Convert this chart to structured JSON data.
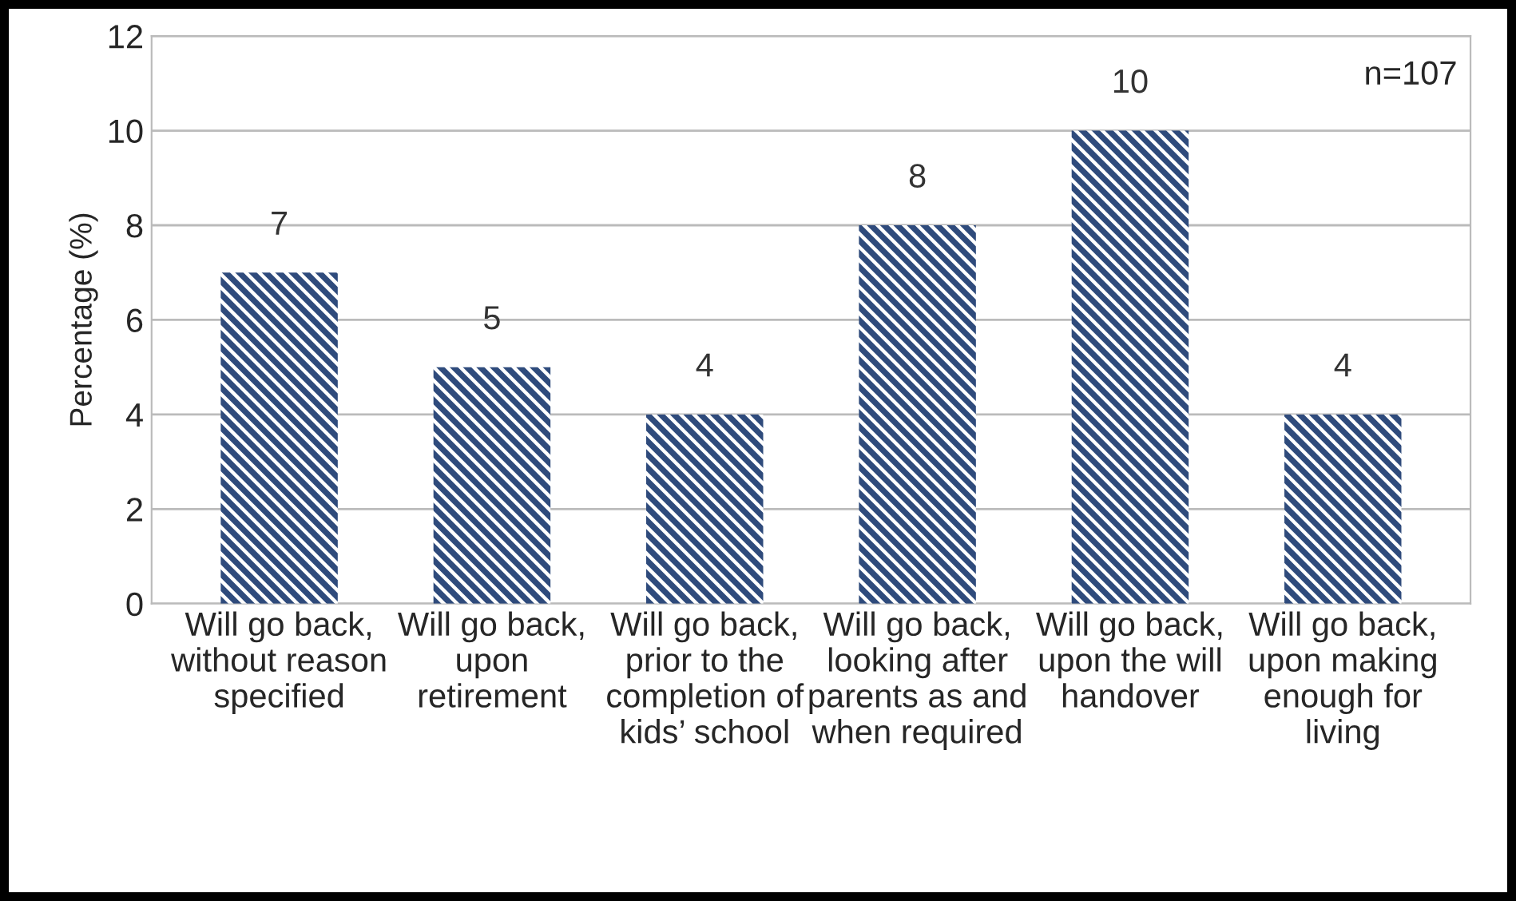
{
  "chart_data": {
    "type": "bar",
    "ylabel": "Percentage (%)",
    "categories": [
      "Will go back,\nwithout reason\nspecified",
      "Will go back,\nupon\nretirement",
      "Will go back,\nprior to the\ncompletion of\nkids’ school",
      "Will go back,\nlooking after\nparents as and\nwhen required",
      "Will go back,\nupon the will\nhandover",
      "Will go back,\nupon making\nenough for\nliving"
    ],
    "values": [
      7,
      5,
      4,
      8,
      10,
      4
    ],
    "color": "#2f4b7c",
    "ylim": [
      0,
      12
    ],
    "yticks": [
      0,
      2,
      4,
      6,
      8,
      10,
      12
    ],
    "grid": "y",
    "data_labels": true,
    "annotations": [
      "n=107"
    ]
  }
}
